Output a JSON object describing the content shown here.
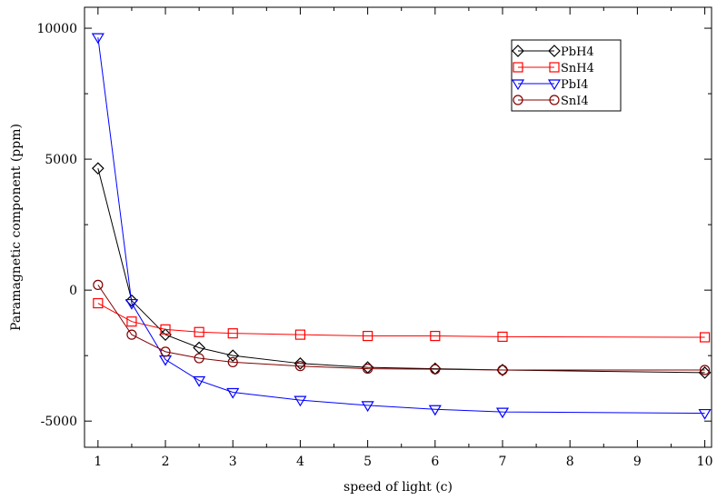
{
  "chart_data": {
    "type": "line",
    "title": "",
    "xlabel": "speed of light (c)",
    "ylabel": "Paramagnetic component (ppm)",
    "xlim": [
      0.8,
      10.1
    ],
    "ylim": [
      -6000,
      10800
    ],
    "xticks": [
      1,
      2,
      3,
      4,
      5,
      6,
      7,
      8,
      9,
      10
    ],
    "xtick_labels": [
      "1",
      "2",
      "3",
      "4",
      "5",
      "6",
      "7",
      "8",
      "9",
      "10"
    ],
    "yticks": [
      10000,
      5000,
      0,
      -5000
    ],
    "ytick_labels": [
      "10000",
      "5000",
      "0",
      "-5000"
    ],
    "grid": false,
    "legend_position": "top-right",
    "x": [
      1,
      1.5,
      2,
      2.5,
      3,
      4,
      5,
      6,
      7,
      10
    ],
    "series": [
      {
        "name": "PbH4",
        "color": "#000000",
        "marker": "diamond",
        "values": [
          4650,
          -400,
          -1700,
          -2200,
          -2500,
          -2800,
          -2950,
          -3000,
          -3050,
          -3150
        ]
      },
      {
        "name": "SnH4",
        "color": "#ff0000",
        "marker": "square",
        "values": [
          -500,
          -1200,
          -1500,
          -1600,
          -1650,
          -1700,
          -1750,
          -1750,
          -1780,
          -1800
        ]
      },
      {
        "name": "PbI4",
        "color": "#0000ff",
        "marker": "triangle-down",
        "values": [
          9650,
          -500,
          -2650,
          -3450,
          -3900,
          -4200,
          -4400,
          -4550,
          -4650,
          -4700
        ]
      },
      {
        "name": "SnI4",
        "color": "#800000",
        "marker": "circle",
        "values": [
          200,
          -1700,
          -2350,
          -2600,
          -2750,
          -2900,
          -3000,
          -3020,
          -3050,
          -3050
        ]
      }
    ]
  }
}
